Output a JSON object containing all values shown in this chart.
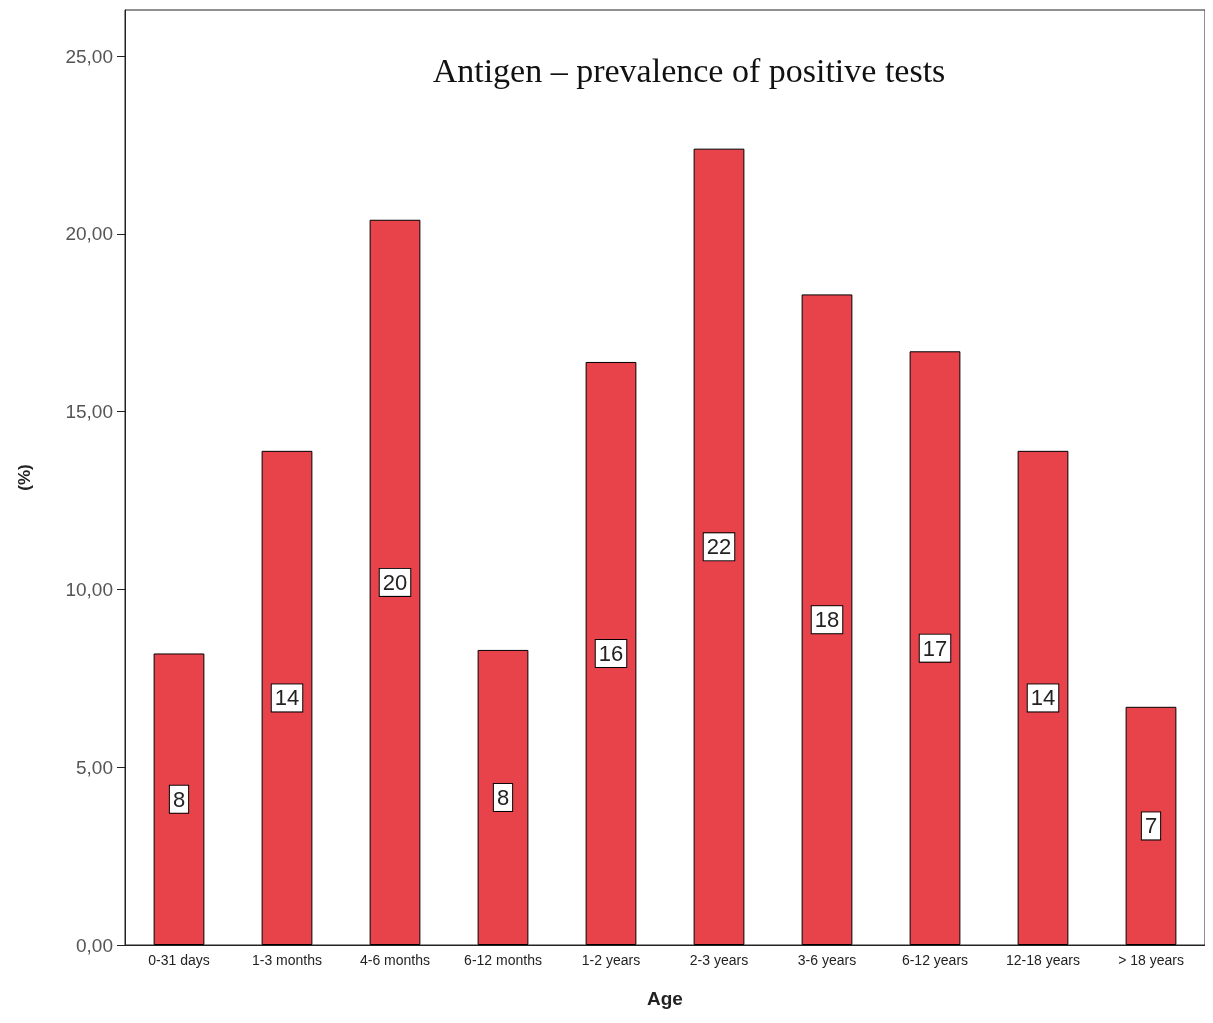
{
  "chart_data": {
    "type": "bar",
    "title": "Antigen – prevalence of positive tests",
    "xlabel": "Age",
    "ylabel": "(%)",
    "categories": [
      "0-31 days",
      "1-3 months",
      "4-6 months",
      "6-12 months",
      "1-2 years",
      "2-3 years",
      "3-6 years",
      "6-12 years",
      "12-18 years",
      "> 18 years"
    ],
    "values": [
      8.2,
      13.9,
      20.4,
      8.3,
      16.4,
      22.4,
      18.3,
      16.7,
      13.9,
      6.7
    ],
    "value_labels": [
      "8",
      "14",
      "20",
      "8",
      "16",
      "22",
      "18",
      "17",
      "14",
      "7"
    ],
    "color": "#e8434b",
    "ylim": [
      0,
      26.3
    ],
    "yticks": [
      {
        "value": 0,
        "label": "0,00"
      },
      {
        "value": 5,
        "label": "5,00"
      },
      {
        "value": 10,
        "label": "10,00"
      },
      {
        "value": 15,
        "label": "15,00"
      },
      {
        "value": 20,
        "label": "20,00"
      },
      {
        "value": 25,
        "label": "25,00"
      }
    ],
    "grid": false
  }
}
